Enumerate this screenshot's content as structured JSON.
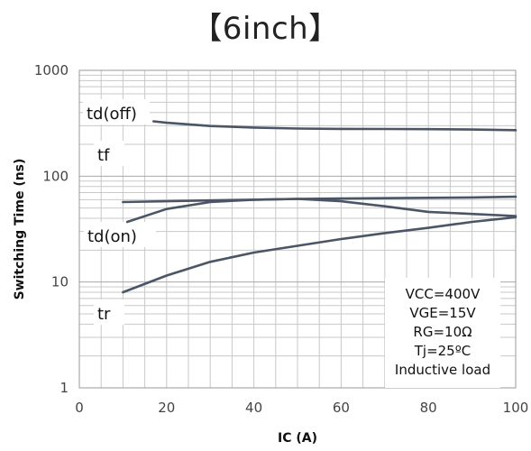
{
  "title": "【6inch】",
  "chart_data": {
    "type": "line",
    "title": "【6inch】",
    "xlabel": "IC (A)",
    "ylabel": "Switching Time (ns)",
    "xlim": [
      0,
      100
    ],
    "ylim": [
      1,
      1000
    ],
    "yscale": "log",
    "grid": true,
    "x_ticks": [
      "0",
      "20",
      "40",
      "60",
      "80",
      "100"
    ],
    "y_ticks": [
      "1",
      "10",
      "100",
      "1000"
    ],
    "series": [
      {
        "name": "td(off)",
        "x": [
          17,
          20,
          30,
          40,
          50,
          60,
          70,
          80,
          90,
          100
        ],
        "y": [
          330,
          320,
          298,
          288,
          282,
          280,
          279,
          278,
          276,
          272
        ]
      },
      {
        "name": "tf",
        "x": [
          10,
          20,
          30,
          40,
          50,
          60,
          70,
          80,
          90,
          100
        ],
        "y": [
          57,
          58,
          59,
          60,
          61,
          61.5,
          62,
          62.5,
          63,
          64
        ]
      },
      {
        "name": "td(on)",
        "x": [
          11,
          20,
          30,
          40,
          50,
          60,
          70,
          80,
          90,
          100
        ],
        "y": [
          37,
          49,
          57,
          60,
          61,
          58,
          52,
          46,
          44,
          42
        ]
      },
      {
        "name": "tr",
        "x": [
          10,
          20,
          30,
          40,
          50,
          60,
          70,
          80,
          90,
          100
        ],
        "y": [
          8,
          11.5,
          15.5,
          19,
          22,
          25.5,
          29,
          32.5,
          37,
          41
        ]
      }
    ],
    "conditions": [
      "VCC=400V",
      "VGE=15V",
      "RG=10Ω",
      "Tj=25ºC",
      "Inductive load"
    ],
    "line_color": "#4a5566",
    "grid_color": "#c8c8c8"
  }
}
